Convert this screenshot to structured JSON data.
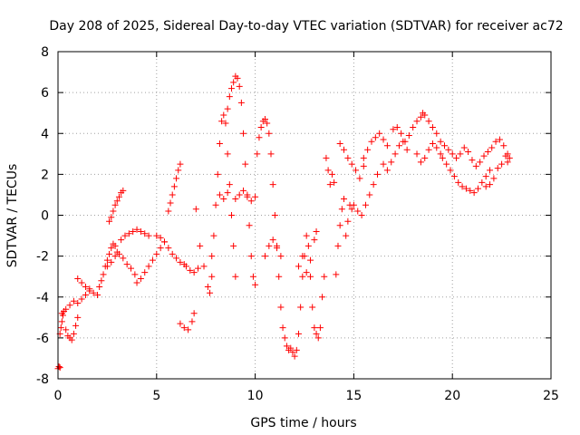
{
  "chart_data": {
    "type": "scatter",
    "title": "Day 208 of 2025, Sidereal Day-to-day VTEC variation (SDTVAR) for receiver ac72",
    "xlabel": "GPS time / hours",
    "ylabel": "SDTVAR / TECUs",
    "xlim": [
      0,
      25
    ],
    "ylim": [
      -8,
      8
    ],
    "xticks": [
      0,
      5,
      10,
      15,
      20,
      25
    ],
    "yticks": [
      -8,
      -6,
      -4,
      -2,
      0,
      2,
      4,
      6,
      8
    ],
    "xtick_labels": [
      "0",
      "5",
      "10",
      "15",
      "20",
      "25"
    ],
    "ytick_labels": [
      "-8",
      "-6",
      "-4",
      "-2",
      "0",
      "2",
      "4",
      "6",
      "8"
    ],
    "grid": true,
    "legend": "none",
    "marker": "+",
    "color": "#ff0000",
    "series": [
      {
        "values": [
          [
            0.0,
            -7.5
          ],
          [
            0.05,
            -7.4
          ],
          [
            0.1,
            -7.45
          ],
          [
            0.1,
            -5.8
          ],
          [
            0.15,
            -5.5
          ],
          [
            0.2,
            -5.2
          ],
          [
            0.25,
            -4.9
          ],
          [
            0.3,
            -4.7
          ],
          [
            0.4,
            -5.6
          ],
          [
            0.5,
            -5.9
          ],
          [
            0.6,
            -6.0
          ],
          [
            0.7,
            -6.1
          ],
          [
            0.8,
            -5.8
          ],
          [
            0.9,
            -5.4
          ],
          [
            1.0,
            -5.0
          ],
          [
            0.2,
            -4.8
          ],
          [
            0.4,
            -4.6
          ],
          [
            0.6,
            -4.4
          ],
          [
            0.8,
            -4.2
          ],
          [
            1.0,
            -4.3
          ],
          [
            1.2,
            -4.1
          ],
          [
            1.4,
            -3.9
          ],
          [
            1.6,
            -3.7
          ],
          [
            1.0,
            -3.1
          ],
          [
            1.2,
            -3.3
          ],
          [
            1.4,
            -3.5
          ],
          [
            1.6,
            -3.6
          ],
          [
            1.8,
            -3.8
          ],
          [
            2.0,
            -3.9
          ],
          [
            2.1,
            -3.5
          ],
          [
            2.2,
            -3.2
          ],
          [
            2.3,
            -2.9
          ],
          [
            2.4,
            -2.5
          ],
          [
            2.5,
            -2.2
          ],
          [
            2.6,
            -1.9
          ],
          [
            2.7,
            -1.6
          ],
          [
            2.8,
            -1.4
          ],
          [
            2.9,
            -1.5
          ],
          [
            3.0,
            -1.8
          ],
          [
            2.6,
            -0.3
          ],
          [
            2.7,
            -0.1
          ],
          [
            2.8,
            0.2
          ],
          [
            2.9,
            0.5
          ],
          [
            3.0,
            0.7
          ],
          [
            3.1,
            0.9
          ],
          [
            3.2,
            1.1
          ],
          [
            3.3,
            1.2
          ],
          [
            2.5,
            -2.5
          ],
          [
            2.7,
            -2.3
          ],
          [
            2.9,
            -2.0
          ],
          [
            3.1,
            -1.9
          ],
          [
            3.3,
            -2.1
          ],
          [
            3.5,
            -2.4
          ],
          [
            3.7,
            -2.6
          ],
          [
            3.9,
            -2.9
          ],
          [
            3.2,
            -1.2
          ],
          [
            3.4,
            -1.0
          ],
          [
            3.6,
            -0.9
          ],
          [
            3.8,
            -0.8
          ],
          [
            4.0,
            -0.7
          ],
          [
            4.2,
            -0.8
          ],
          [
            4.4,
            -0.9
          ],
          [
            4.6,
            -1.0
          ],
          [
            4.0,
            -3.3
          ],
          [
            4.2,
            -3.1
          ],
          [
            4.4,
            -2.8
          ],
          [
            4.6,
            -2.5
          ],
          [
            4.8,
            -2.2
          ],
          [
            5.0,
            -1.9
          ],
          [
            5.2,
            -1.6
          ],
          [
            5.4,
            -1.3
          ],
          [
            5.0,
            -1.0
          ],
          [
            5.2,
            -1.1
          ],
          [
            5.4,
            -1.3
          ],
          [
            5.6,
            -1.6
          ],
          [
            5.8,
            -1.9
          ],
          [
            6.0,
            -2.1
          ],
          [
            6.2,
            -2.3
          ],
          [
            6.4,
            -2.4
          ],
          [
            5.6,
            0.2
          ],
          [
            5.7,
            0.6
          ],
          [
            5.8,
            1.0
          ],
          [
            5.9,
            1.4
          ],
          [
            6.0,
            1.8
          ],
          [
            6.1,
            2.2
          ],
          [
            6.2,
            2.5
          ],
          [
            6.5,
            -2.5
          ],
          [
            6.7,
            -2.7
          ],
          [
            6.9,
            -2.8
          ],
          [
            7.1,
            -2.6
          ],
          [
            6.2,
            -5.3
          ],
          [
            6.4,
            -5.5
          ],
          [
            6.6,
            -5.6
          ],
          [
            6.8,
            -5.2
          ],
          [
            6.9,
            -4.8
          ],
          [
            7.0,
            0.3
          ],
          [
            7.2,
            -1.5
          ],
          [
            7.4,
            -2.5
          ],
          [
            7.6,
            -3.5
          ],
          [
            7.7,
            -3.8
          ],
          [
            7.8,
            -3.0
          ],
          [
            7.8,
            -2.0
          ],
          [
            7.9,
            -1.0
          ],
          [
            8.0,
            0.5
          ],
          [
            8.1,
            2.0
          ],
          [
            8.2,
            3.5
          ],
          [
            8.3,
            4.6
          ],
          [
            8.4,
            4.9
          ],
          [
            8.5,
            4.5
          ],
          [
            8.6,
            3.0
          ],
          [
            8.7,
            1.5
          ],
          [
            8.8,
            0.0
          ],
          [
            8.9,
            -1.5
          ],
          [
            9.0,
            -3.0
          ],
          [
            8.2,
            1.0
          ],
          [
            8.4,
            0.8
          ],
          [
            8.6,
            1.1
          ],
          [
            8.6,
            5.2
          ],
          [
            8.7,
            5.8
          ],
          [
            8.8,
            6.2
          ],
          [
            8.9,
            6.5
          ],
          [
            9.0,
            6.8
          ],
          [
            9.1,
            6.7
          ],
          [
            9.2,
            6.3
          ],
          [
            9.3,
            5.5
          ],
          [
            9.4,
            4.0
          ],
          [
            9.5,
            2.5
          ],
          [
            9.6,
            1.0
          ],
          [
            9.7,
            -0.5
          ],
          [
            9.8,
            -2.0
          ],
          [
            9.9,
            -3.0
          ],
          [
            10.0,
            -3.4
          ],
          [
            9.0,
            0.8
          ],
          [
            9.2,
            1.0
          ],
          [
            9.4,
            1.2
          ],
          [
            9.6,
            0.9
          ],
          [
            9.8,
            0.7
          ],
          [
            10.0,
            0.9
          ],
          [
            10.1,
            3.0
          ],
          [
            10.2,
            3.8
          ],
          [
            10.3,
            4.3
          ],
          [
            10.4,
            4.6
          ],
          [
            10.5,
            4.7
          ],
          [
            10.6,
            4.5
          ],
          [
            10.7,
            4.0
          ],
          [
            10.8,
            3.0
          ],
          [
            10.9,
            1.5
          ],
          [
            11.0,
            0.0
          ],
          [
            11.1,
            -1.5
          ],
          [
            11.2,
            -3.0
          ],
          [
            11.3,
            -4.5
          ],
          [
            11.4,
            -5.5
          ],
          [
            10.5,
            -2.0
          ],
          [
            10.7,
            -1.5
          ],
          [
            10.9,
            -1.2
          ],
          [
            11.1,
            -1.6
          ],
          [
            11.3,
            -2.0
          ],
          [
            11.5,
            -6.0
          ],
          [
            11.6,
            -6.4
          ],
          [
            11.7,
            -6.6
          ],
          [
            11.8,
            -6.5
          ],
          [
            11.9,
            -6.7
          ],
          [
            12.0,
            -6.9
          ],
          [
            12.1,
            -6.6
          ],
          [
            12.2,
            -5.8
          ],
          [
            12.3,
            -4.5
          ],
          [
            12.4,
            -3.0
          ],
          [
            12.5,
            -2.0
          ],
          [
            12.6,
            -1.0
          ],
          [
            12.7,
            -1.5
          ],
          [
            12.8,
            -3.0
          ],
          [
            12.9,
            -4.5
          ],
          [
            13.0,
            -5.5
          ],
          [
            13.1,
            -5.8
          ],
          [
            13.2,
            -6.0
          ],
          [
            13.3,
            -5.5
          ],
          [
            13.4,
            -4.0
          ],
          [
            13.5,
            -3.0
          ],
          [
            12.2,
            -2.5
          ],
          [
            12.4,
            -2.0
          ],
          [
            12.6,
            -2.8
          ],
          [
            12.8,
            -2.2
          ],
          [
            13.0,
            -1.2
          ],
          [
            13.1,
            -0.8
          ],
          [
            13.6,
            2.8
          ],
          [
            13.7,
            2.2
          ],
          [
            13.8,
            1.5
          ],
          [
            13.9,
            2.0
          ],
          [
            14.0,
            1.6
          ],
          [
            14.1,
            -2.9
          ],
          [
            14.2,
            -1.5
          ],
          [
            14.3,
            -0.5
          ],
          [
            14.4,
            0.3
          ],
          [
            14.5,
            0.8
          ],
          [
            14.6,
            -1.0
          ],
          [
            14.7,
            -0.3
          ],
          [
            14.8,
            0.5
          ],
          [
            14.9,
            0.3
          ],
          [
            14.3,
            3.5
          ],
          [
            14.5,
            3.2
          ],
          [
            14.7,
            2.8
          ],
          [
            14.9,
            2.5
          ],
          [
            15.1,
            2.2
          ],
          [
            15.3,
            1.8
          ],
          [
            15.5,
            2.4
          ],
          [
            15.0,
            0.5
          ],
          [
            15.2,
            0.2
          ],
          [
            15.4,
            0.0
          ],
          [
            15.6,
            0.5
          ],
          [
            15.8,
            1.0
          ],
          [
            16.0,
            1.5
          ],
          [
            16.2,
            2.0
          ],
          [
            15.5,
            2.8
          ],
          [
            15.7,
            3.2
          ],
          [
            15.9,
            3.6
          ],
          [
            16.1,
            3.8
          ],
          [
            16.3,
            4.0
          ],
          [
            16.5,
            3.7
          ],
          [
            16.7,
            3.4
          ],
          [
            16.5,
            2.5
          ],
          [
            16.7,
            2.2
          ],
          [
            16.9,
            2.6
          ],
          [
            17.1,
            3.0
          ],
          [
            17.3,
            3.4
          ],
          [
            17.5,
            3.6
          ],
          [
            17.7,
            3.2
          ],
          [
            17.0,
            4.2
          ],
          [
            17.2,
            4.3
          ],
          [
            17.4,
            4.0
          ],
          [
            17.6,
            3.6
          ],
          [
            17.8,
            3.9
          ],
          [
            18.0,
            4.3
          ],
          [
            18.2,
            4.6
          ],
          [
            18.4,
            4.8
          ],
          [
            18.5,
            5.0
          ],
          [
            18.6,
            4.9
          ],
          [
            18.8,
            4.6
          ],
          [
            19.0,
            4.3
          ],
          [
            19.2,
            4.0
          ],
          [
            19.4,
            3.6
          ],
          [
            18.2,
            3.0
          ],
          [
            18.4,
            2.6
          ],
          [
            18.6,
            2.8
          ],
          [
            18.8,
            3.2
          ],
          [
            19.0,
            3.5
          ],
          [
            19.2,
            3.3
          ],
          [
            19.4,
            3.0
          ],
          [
            19.5,
            2.8
          ],
          [
            19.7,
            2.5
          ],
          [
            19.9,
            2.2
          ],
          [
            20.1,
            1.9
          ],
          [
            20.3,
            1.6
          ],
          [
            20.5,
            1.4
          ],
          [
            20.7,
            1.3
          ],
          [
            20.9,
            1.2
          ],
          [
            21.1,
            1.1
          ],
          [
            21.3,
            1.3
          ],
          [
            21.5,
            1.6
          ],
          [
            21.7,
            1.9
          ],
          [
            21.9,
            2.2
          ],
          [
            19.6,
            3.4
          ],
          [
            19.8,
            3.2
          ],
          [
            20.0,
            3.0
          ],
          [
            20.2,
            2.8
          ],
          [
            20.4,
            3.0
          ],
          [
            20.6,
            3.3
          ],
          [
            20.8,
            3.1
          ],
          [
            21.0,
            2.7
          ],
          [
            21.2,
            2.4
          ],
          [
            21.4,
            2.6
          ],
          [
            21.6,
            2.9
          ],
          [
            21.8,
            3.1
          ],
          [
            22.0,
            3.3
          ],
          [
            22.2,
            3.6
          ],
          [
            22.4,
            3.7
          ],
          [
            22.6,
            3.4
          ],
          [
            22.8,
            3.0
          ],
          [
            22.9,
            2.8
          ],
          [
            22.3,
            2.3
          ],
          [
            22.5,
            2.5
          ],
          [
            22.7,
            2.9
          ],
          [
            22.1,
            1.8
          ],
          [
            21.9,
            1.5
          ],
          [
            21.7,
            1.4
          ],
          [
            22.8,
            2.6
          ]
        ]
      }
    ]
  }
}
